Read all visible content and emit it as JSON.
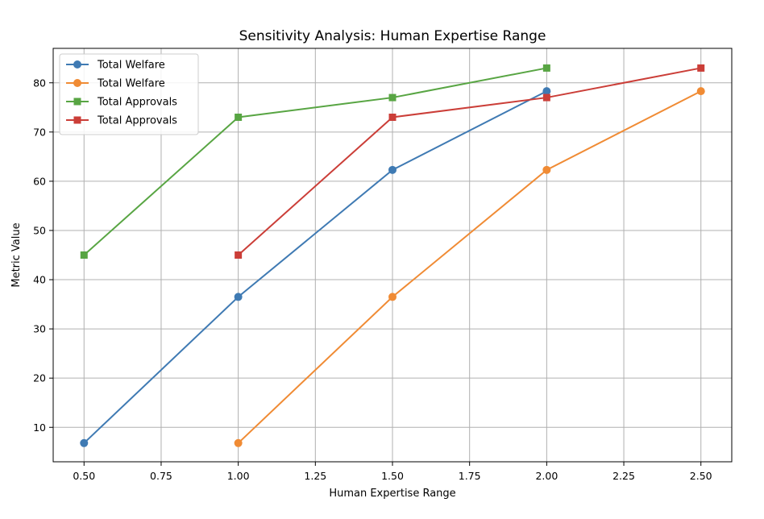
{
  "chart_data": {
    "type": "line",
    "title": "Sensitivity Analysis: Human Expertise Range",
    "xlabel": "Human Expertise Range",
    "ylabel": "Metric Value",
    "xlim": [
      0.4,
      2.6
    ],
    "ylim": [
      3.0,
      87.0
    ],
    "xticks": [
      0.5,
      0.75,
      1.0,
      1.25,
      1.5,
      1.75,
      2.0,
      2.25,
      2.5
    ],
    "xtick_labels": [
      "0.50",
      "0.75",
      "1.00",
      "1.25",
      "1.50",
      "1.75",
      "2.00",
      "2.25",
      "2.50"
    ],
    "yticks": [
      10,
      20,
      30,
      40,
      50,
      60,
      70,
      80
    ],
    "ytick_labels": [
      "10",
      "20",
      "30",
      "40",
      "50",
      "60",
      "70",
      "80"
    ],
    "grid": true,
    "legend_position": "top-left",
    "series": [
      {
        "name": "Total Welfare",
        "color": "#3f7ab3",
        "marker": "circle",
        "x": [
          0.5,
          1.0,
          1.5,
          2.0
        ],
        "y": [
          6.8,
          36.5,
          62.3,
          78.3
        ]
      },
      {
        "name": "Total Welfare",
        "color": "#f08b34",
        "marker": "circle",
        "x": [
          1.0,
          1.5,
          2.0,
          2.5
        ],
        "y": [
          6.8,
          36.5,
          62.3,
          78.3
        ]
      },
      {
        "name": "Total Approvals",
        "color": "#58a543",
        "marker": "square",
        "x": [
          0.5,
          1.0,
          1.5,
          2.0
        ],
        "y": [
          45,
          73,
          77,
          83
        ]
      },
      {
        "name": "Total Approvals",
        "color": "#cb3e38",
        "marker": "square",
        "x": [
          1.0,
          1.5,
          2.0,
          2.5
        ],
        "y": [
          45,
          73,
          77,
          83
        ]
      }
    ]
  }
}
